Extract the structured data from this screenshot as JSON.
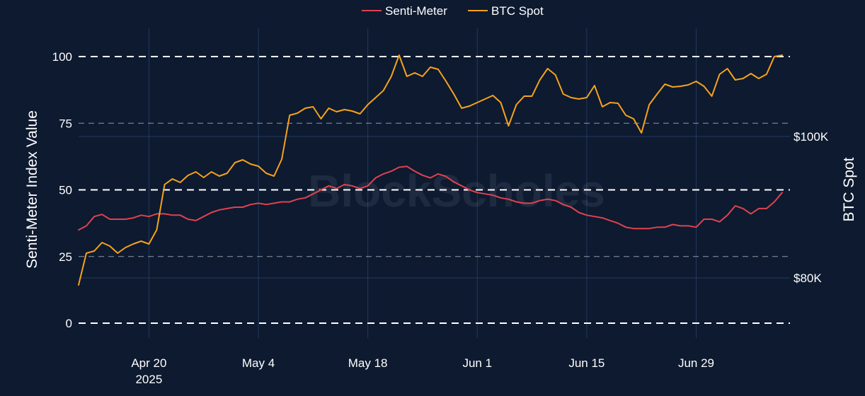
{
  "chart_data": {
    "type": "line",
    "legend": {
      "placement": "top-center",
      "entries": [
        "Senti-Meter",
        "BTC Spot"
      ]
    },
    "x_ticks": [
      {
        "date": "2025-04-20",
        "label": "Apr 20",
        "sublabel": "2025"
      },
      {
        "date": "2025-05-04",
        "label": "May 4"
      },
      {
        "date": "2025-05-18",
        "label": "May 18"
      },
      {
        "date": "2025-06-01",
        "label": "Jun 1"
      },
      {
        "date": "2025-06-15",
        "label": "Jun 15"
      },
      {
        "date": "2025-06-29",
        "label": "Jun 29"
      }
    ],
    "xlim": [
      "2025-04-11",
      "2025-07-11"
    ],
    "y_left": {
      "label": "Senti-Meter Index Value",
      "range": [
        0,
        100
      ],
      "ticks": [
        "0",
        "25",
        "50",
        "75",
        "100"
      ]
    },
    "y_right": {
      "label": "BTC Spot",
      "ticks": [
        {
          "value": 80000,
          "label": "$80K"
        },
        {
          "value": 100000,
          "label": "$100K"
        }
      ]
    },
    "watermark": "BlockScholes",
    "colors": {
      "senti": "#e0424f",
      "btc": "#f7a21b",
      "background": "#0d1a30",
      "grid": "#24395e",
      "gridline_dashed": "#ffffff"
    },
    "series": [
      {
        "name": "Senti-Meter",
        "axis": "left",
        "points": [
          [
            "2025-04-11",
            35.0
          ],
          [
            "2025-04-12",
            36.5
          ],
          [
            "2025-04-13",
            40.0
          ],
          [
            "2025-04-14",
            40.8
          ],
          [
            "2025-04-15",
            39.0
          ],
          [
            "2025-04-16",
            39.0
          ],
          [
            "2025-04-17",
            39.0
          ],
          [
            "2025-04-18",
            39.5
          ],
          [
            "2025-04-19",
            40.5
          ],
          [
            "2025-04-20",
            40.0
          ],
          [
            "2025-04-21",
            41.0
          ],
          [
            "2025-04-22",
            41.0
          ],
          [
            "2025-04-23",
            40.5
          ],
          [
            "2025-04-24",
            40.5
          ],
          [
            "2025-04-25",
            39.0
          ],
          [
            "2025-04-26",
            38.5
          ],
          [
            "2025-04-27",
            40.0
          ],
          [
            "2025-04-28",
            41.5
          ],
          [
            "2025-04-29",
            42.5
          ],
          [
            "2025-04-30",
            43.0
          ],
          [
            "2025-05-01",
            43.5
          ],
          [
            "2025-05-02",
            43.5
          ],
          [
            "2025-05-03",
            44.5
          ],
          [
            "2025-05-04",
            45.0
          ],
          [
            "2025-05-05",
            44.5
          ],
          [
            "2025-05-06",
            45.0
          ],
          [
            "2025-05-07",
            45.5
          ],
          [
            "2025-05-08",
            45.5
          ],
          [
            "2025-05-09",
            46.5
          ],
          [
            "2025-05-10",
            47.0
          ],
          [
            "2025-05-11",
            48.5
          ],
          [
            "2025-05-12",
            50.0
          ],
          [
            "2025-05-13",
            51.5
          ],
          [
            "2025-05-14",
            50.5
          ],
          [
            "2025-05-15",
            52.0
          ],
          [
            "2025-05-16",
            51.5
          ],
          [
            "2025-05-17",
            50.5
          ],
          [
            "2025-05-18",
            51.5
          ],
          [
            "2025-05-19",
            54.5
          ],
          [
            "2025-05-20",
            56.0
          ],
          [
            "2025-05-21",
            57.0
          ],
          [
            "2025-05-22",
            58.5
          ],
          [
            "2025-05-23",
            58.8
          ],
          [
            "2025-05-24",
            57.0
          ],
          [
            "2025-05-25",
            55.5
          ],
          [
            "2025-05-26",
            54.5
          ],
          [
            "2025-05-27",
            56.0
          ],
          [
            "2025-05-28",
            55.0
          ],
          [
            "2025-05-29",
            53.0
          ],
          [
            "2025-05-30",
            51.5
          ],
          [
            "2025-05-31",
            50.0
          ],
          [
            "2025-06-01",
            49.0
          ],
          [
            "2025-06-02",
            48.5
          ],
          [
            "2025-06-03",
            48.0
          ],
          [
            "2025-06-04",
            47.0
          ],
          [
            "2025-06-05",
            46.5
          ],
          [
            "2025-06-06",
            45.5
          ],
          [
            "2025-06-07",
            45.0
          ],
          [
            "2025-06-08",
            45.0
          ],
          [
            "2025-06-09",
            46.0
          ],
          [
            "2025-06-10",
            46.5
          ],
          [
            "2025-06-11",
            46.0
          ],
          [
            "2025-06-12",
            44.5
          ],
          [
            "2025-06-13",
            43.5
          ],
          [
            "2025-06-14",
            41.5
          ],
          [
            "2025-06-15",
            40.5
          ],
          [
            "2025-06-16",
            40.0
          ],
          [
            "2025-06-17",
            39.5
          ],
          [
            "2025-06-18",
            38.5
          ],
          [
            "2025-06-19",
            37.5
          ],
          [
            "2025-06-20",
            36.0
          ],
          [
            "2025-06-21",
            35.5
          ],
          [
            "2025-06-22",
            35.5
          ],
          [
            "2025-06-23",
            35.5
          ],
          [
            "2025-06-24",
            36.0
          ],
          [
            "2025-06-25",
            36.0
          ],
          [
            "2025-06-26",
            37.0
          ],
          [
            "2025-06-27",
            36.5
          ],
          [
            "2025-06-28",
            36.5
          ],
          [
            "2025-06-29",
            36.0
          ],
          [
            "2025-06-30",
            39.0
          ],
          [
            "2025-07-01",
            39.0
          ],
          [
            "2025-07-02",
            38.0
          ],
          [
            "2025-07-03",
            40.5
          ],
          [
            "2025-07-04",
            44.0
          ],
          [
            "2025-07-05",
            43.0
          ],
          [
            "2025-07-06",
            41.0
          ],
          [
            "2025-07-07",
            43.0
          ],
          [
            "2025-07-08",
            43.0
          ],
          [
            "2025-07-09",
            45.5
          ],
          [
            "2025-07-10",
            49.0
          ]
        ]
      },
      {
        "name": "BTC Spot",
        "axis": "right",
        "points": [
          [
            "2025-04-11",
            79000
          ],
          [
            "2025-04-12",
            83500
          ],
          [
            "2025-04-13",
            83800
          ],
          [
            "2025-04-14",
            85000
          ],
          [
            "2025-04-15",
            84500
          ],
          [
            "2025-04-16",
            83500
          ],
          [
            "2025-04-17",
            84300
          ],
          [
            "2025-04-18",
            84800
          ],
          [
            "2025-04-19",
            85200
          ],
          [
            "2025-04-20",
            84800
          ],
          [
            "2025-04-21",
            86800
          ],
          [
            "2025-04-22",
            93200
          ],
          [
            "2025-04-23",
            94000
          ],
          [
            "2025-04-24",
            93500
          ],
          [
            "2025-04-25",
            94500
          ],
          [
            "2025-04-26",
            95000
          ],
          [
            "2025-04-27",
            94200
          ],
          [
            "2025-04-28",
            95000
          ],
          [
            "2025-04-29",
            94400
          ],
          [
            "2025-04-30",
            94800
          ],
          [
            "2025-05-01",
            96300
          ],
          [
            "2025-05-02",
            96700
          ],
          [
            "2025-05-03",
            96100
          ],
          [
            "2025-05-04",
            95800
          ],
          [
            "2025-05-05",
            94800
          ],
          [
            "2025-05-06",
            94400
          ],
          [
            "2025-05-07",
            96800
          ],
          [
            "2025-05-08",
            103000
          ],
          [
            "2025-05-09",
            103300
          ],
          [
            "2025-05-10",
            104000
          ],
          [
            "2025-05-11",
            104200
          ],
          [
            "2025-05-12",
            102500
          ],
          [
            "2025-05-13",
            104000
          ],
          [
            "2025-05-14",
            103500
          ],
          [
            "2025-05-15",
            103800
          ],
          [
            "2025-05-16",
            103600
          ],
          [
            "2025-05-17",
            103200
          ],
          [
            "2025-05-18",
            104500
          ],
          [
            "2025-05-19",
            105500
          ],
          [
            "2025-05-20",
            106500
          ],
          [
            "2025-05-21",
            108500
          ],
          [
            "2025-05-22",
            111500
          ],
          [
            "2025-05-23",
            108500
          ],
          [
            "2025-05-24",
            109000
          ],
          [
            "2025-05-25",
            108500
          ],
          [
            "2025-05-26",
            109800
          ],
          [
            "2025-05-27",
            109500
          ],
          [
            "2025-05-28",
            107800
          ],
          [
            "2025-05-29",
            106000
          ],
          [
            "2025-05-30",
            104000
          ],
          [
            "2025-05-31",
            104300
          ],
          [
            "2025-06-01",
            104800
          ],
          [
            "2025-06-02",
            105300
          ],
          [
            "2025-06-03",
            105800
          ],
          [
            "2025-06-04",
            104800
          ],
          [
            "2025-06-05",
            101500
          ],
          [
            "2025-06-06",
            104500
          ],
          [
            "2025-06-07",
            105700
          ],
          [
            "2025-06-08",
            105700
          ],
          [
            "2025-06-09",
            108000
          ],
          [
            "2025-06-10",
            109600
          ],
          [
            "2025-06-11",
            108700
          ],
          [
            "2025-06-12",
            106000
          ],
          [
            "2025-06-13",
            105500
          ],
          [
            "2025-06-14",
            105300
          ],
          [
            "2025-06-15",
            105500
          ],
          [
            "2025-06-16",
            107200
          ],
          [
            "2025-06-17",
            104200
          ],
          [
            "2025-06-18",
            104800
          ],
          [
            "2025-06-19",
            104700
          ],
          [
            "2025-06-20",
            103000
          ],
          [
            "2025-06-21",
            102500
          ],
          [
            "2025-06-22",
            100500
          ],
          [
            "2025-06-23",
            104500
          ],
          [
            "2025-06-24",
            106000
          ],
          [
            "2025-06-25",
            107400
          ],
          [
            "2025-06-26",
            107000
          ],
          [
            "2025-06-27",
            107100
          ],
          [
            "2025-06-28",
            107300
          ],
          [
            "2025-06-29",
            107800
          ],
          [
            "2025-06-30",
            107100
          ],
          [
            "2025-07-01",
            105700
          ],
          [
            "2025-07-02",
            108800
          ],
          [
            "2025-07-03",
            109600
          ],
          [
            "2025-07-04",
            108000
          ],
          [
            "2025-07-05",
            108200
          ],
          [
            "2025-07-06",
            108900
          ],
          [
            "2025-07-07",
            108200
          ],
          [
            "2025-07-08",
            108800
          ],
          [
            "2025-07-09",
            111300
          ],
          [
            "2025-07-10",
            111500
          ]
        ]
      }
    ]
  }
}
